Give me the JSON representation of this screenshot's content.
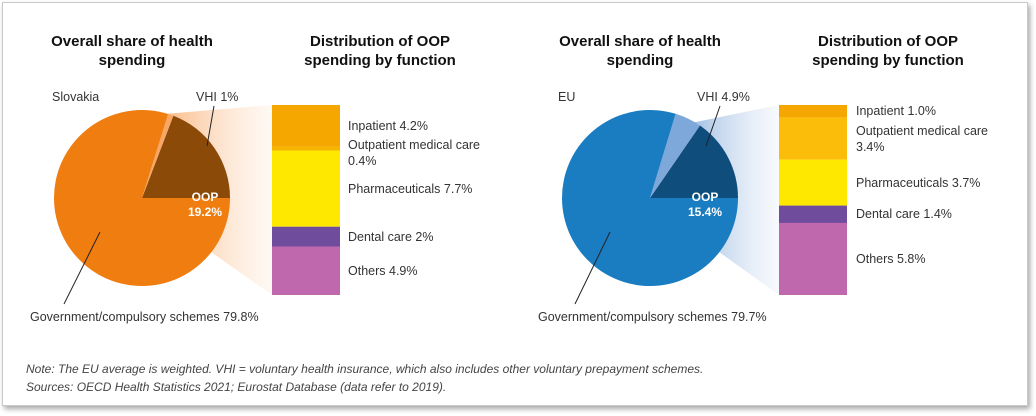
{
  "chart_data": [
    {
      "type": "pie",
      "title": "Overall share of health spending",
      "label": "Slovakia",
      "categories": [
        "OOP",
        "VHI",
        "Government/compulsory schemes"
      ],
      "values": [
        19.2,
        1,
        79.8
      ],
      "value_labels": [
        "19.2%",
        "1%",
        "79.8%"
      ],
      "colors": [
        "#8b4a08",
        "#f8a765",
        "#ef7d10"
      ]
    },
    {
      "type": "stacked_bar",
      "title": "Distribution of OOP spending by function",
      "categories": [
        "Inpatient",
        "Outpatient medical care",
        "Pharmaceuticals",
        "Dental care",
        "Others"
      ],
      "values": [
        4.2,
        0.4,
        7.7,
        2,
        4.9
      ],
      "value_labels": [
        "4.2%",
        "0.4%",
        "7.7%",
        "2%",
        "4.9%"
      ],
      "colors": [
        "#f5a700",
        "#f7b500",
        "#fee800",
        "#6f4c9c",
        "#c068ae"
      ]
    },
    {
      "type": "pie",
      "title": "Overall share of health spending",
      "label": "EU",
      "categories": [
        "OOP",
        "VHI",
        "Government/compulsory schemes"
      ],
      "values": [
        15.4,
        4.9,
        79.7
      ],
      "value_labels": [
        "15.4%",
        "4.9%",
        "79.7%"
      ],
      "colors": [
        "#0f4d7c",
        "#7ea8d9",
        "#1a7cc1"
      ]
    },
    {
      "type": "stacked_bar",
      "title": "Distribution of OOP spending by function",
      "categories": [
        "Inpatient",
        "Outpatient medical care",
        "Pharmaceuticals",
        "Dental care",
        "Others"
      ],
      "values": [
        1.0,
        3.4,
        3.7,
        1.4,
        5.8
      ],
      "value_labels": [
        "1.0%",
        "3.4%",
        "3.7%",
        "1.4%",
        "5.8%"
      ],
      "colors": [
        "#f5a700",
        "#fbbc0a",
        "#fee800",
        "#6f4c9c",
        "#c068ae"
      ]
    }
  ],
  "note": "Note: The EU average is weighted. VHI = voluntary health insurance, which also includes other voluntary prepayment schemes.",
  "sources": "Sources: OECD Health Statistics 2021; Eurostat Database (data refer to 2019)."
}
